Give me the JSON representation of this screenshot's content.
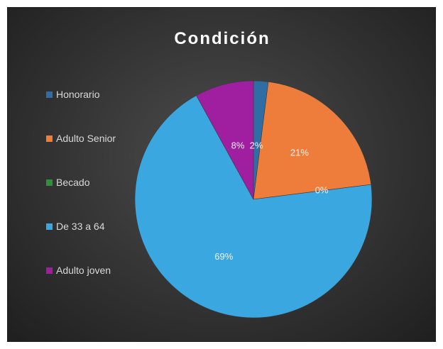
{
  "chart_data": {
    "type": "pie",
    "title": "Condición",
    "legend_position": "left",
    "categories": [
      "Honorario",
      "Adulto Senior",
      "Becado",
      "De 33 a 64",
      "Adulto joven"
    ],
    "values": [
      2,
      21,
      0,
      69,
      8
    ],
    "labels": [
      "2%",
      "21%",
      "0%",
      "69%",
      "8%"
    ],
    "colors": [
      "#2f6ea4",
      "#ee7d3b",
      "#2f8f3c",
      "#3ba7e0",
      "#a01fa0"
    ]
  }
}
